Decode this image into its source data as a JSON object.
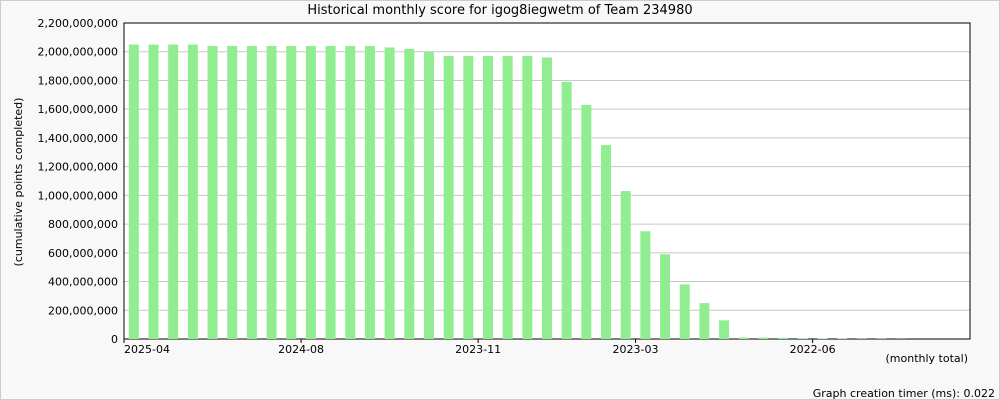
{
  "chart_data": {
    "type": "bar",
    "title": "Historical monthly score for igog8iegwetm of Team 234980",
    "y_label": "(cumulative points completed)",
    "x_label": "(monthly total)",
    "footer": "Graph creation timer (ms): 0.022",
    "color": "#90ee90",
    "grid": true,
    "categories": [
      "2025-04",
      null,
      null,
      null,
      null,
      null,
      null,
      null,
      null,
      "2024-08",
      null,
      null,
      null,
      null,
      null,
      null,
      null,
      null,
      "2023-11",
      null,
      null,
      null,
      null,
      null,
      null,
      null,
      "2023-03",
      null,
      null,
      null,
      null,
      null,
      null,
      null,
      null,
      "2022-06",
      null,
      null,
      null,
      null,
      null,
      null,
      null
    ],
    "values": [
      2050000000,
      2050000000,
      2050000000,
      2050000000,
      2040000000,
      2040000000,
      2040000000,
      2040000000,
      2040000000,
      2040000000,
      2040000000,
      2040000000,
      2040000000,
      2030000000,
      2020000000,
      2000000000,
      1970000000,
      1970000000,
      1970000000,
      1970000000,
      1970000000,
      1960000000,
      1790000000,
      1630000000,
      1350000000,
      1030000000,
      750000000,
      590000000,
      380000000,
      250000000,
      130000000,
      10000000,
      10000000,
      8000000,
      5000000,
      4000000,
      3000000,
      2000000,
      2000000,
      1000000,
      0,
      0,
      0
    ],
    "ylim": [
      0,
      2200000000
    ],
    "yticks": [
      0,
      {
        "value": 200000000,
        "label": "200,000,000"
      },
      {
        "value": 400000000,
        "label": "400,000,000"
      },
      {
        "value": 600000000,
        "label": "600,000,000"
      },
      {
        "value": 800000000,
        "label": "800,000,000"
      },
      {
        "value": 1000000000,
        "label": "1,000,000,000"
      },
      {
        "value": 1200000000,
        "label": "1,200,000,000"
      },
      {
        "value": 1400000000,
        "label": "1,400,000,000"
      },
      {
        "value": 1600000000,
        "label": "1,600,000,000"
      },
      {
        "value": 1800000000,
        "label": "1,800,000,000"
      },
      {
        "value": 2000000000,
        "label": "2,000,000,000"
      },
      {
        "value": 2200000000,
        "label": "2,200,000,000"
      }
    ]
  }
}
